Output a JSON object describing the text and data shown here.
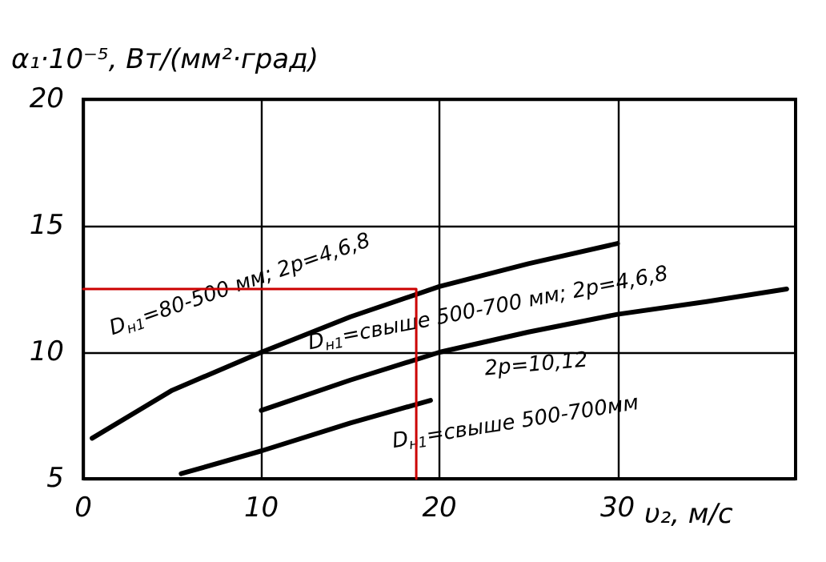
{
  "chart_data": {
    "type": "line",
    "ylabel": "α₁·10⁻⁵, Вт/(мм²·град)",
    "xlabel": "υ₂, м/с",
    "xlim": [
      0,
      40
    ],
    "xticks": [
      0,
      10,
      20,
      30
    ],
    "ylim": [
      5,
      20
    ],
    "yticks": [
      5,
      10,
      15,
      20
    ],
    "grid": true,
    "marker": "none",
    "line_style": "solid",
    "series": [
      {
        "color": "#000000",
        "x": [
          0.5,
          5,
          10,
          15,
          20,
          25,
          30
        ],
        "values": [
          6.6,
          8.5,
          10,
          11.4,
          12.6,
          13.5,
          14.3
        ]
      },
      {
        "color": "#000000",
        "x": [
          10,
          15,
          20,
          25,
          30,
          35,
          39.5
        ],
        "values": [
          7.7,
          8.9,
          10,
          10.8,
          11.5,
          12,
          12.5
        ]
      },
      {
        "color": "#000000",
        "x": [
          5.5,
          10,
          15,
          19.5
        ],
        "values": [
          5.2,
          6.1,
          7.2,
          8.1
        ]
      },
      {
        "color": "#cc0000",
        "x": [
          0,
          18.7,
          18.7
        ],
        "values": [
          12.5,
          12.5,
          5
        ]
      }
    ],
    "annotations": [
      "D$_{н1}$=80-500 мм; 2p=4,6,8",
      "D$_{н1}$=свыше 500-700 мм; 2p=4,6,8",
      "2p=10,12",
      "D$_{н1}$=свыше 500-700мм"
    ]
  }
}
